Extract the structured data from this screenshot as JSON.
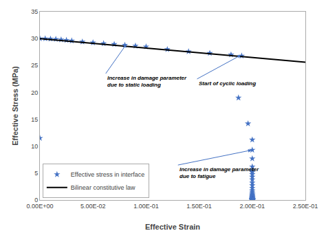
{
  "chart_data": {
    "type": "scatter",
    "xlabel": "Effective Strain",
    "ylabel": "Effective Stress (MPa)",
    "xlim": [
      0,
      0.25
    ],
    "ylim": [
      0,
      35
    ],
    "xticks": [
      {
        "value": 0.0,
        "label": "0.00E+00"
      },
      {
        "value": 0.05,
        "label": "5.00E-02"
      },
      {
        "value": 0.1,
        "label": "1.00E-01"
      },
      {
        "value": 0.15,
        "label": "1.50E-01"
      },
      {
        "value": 0.2,
        "label": "2.00E-01"
      },
      {
        "value": 0.25,
        "label": "2.50E-01"
      }
    ],
    "yticks": [
      0,
      5,
      10,
      15,
      20,
      25,
      30,
      35
    ],
    "grid": false,
    "legend": "lower left",
    "series": [
      {
        "name": "Effective stress in interface",
        "type": "scatter",
        "marker": "star",
        "color": "#4472C4",
        "x": [
          0.0,
          0.005,
          0.01,
          0.015,
          0.02,
          0.025,
          0.03,
          0.04,
          0.05,
          0.06,
          0.07,
          0.08,
          0.09,
          0.1,
          0.12,
          0.14,
          0.16,
          0.18,
          0.19,
          0.0,
          0.187,
          0.196,
          0.2,
          0.2,
          0.2,
          0.2,
          0.2,
          0.2,
          0.2,
          0.2,
          0.2,
          0.2,
          0.2,
          0.2,
          0.2,
          0.2,
          0.2,
          0.2,
          0.2,
          0.2,
          0.2,
          0.2,
          0.2,
          0.2,
          0.2,
          0.2,
          0.2,
          0.2,
          0.2,
          0.2,
          0.2,
          0.2,
          0.2,
          0.2,
          0.2,
          0.2,
          0.2,
          0.2,
          0.2,
          0.2,
          0.2,
          0.2,
          0.2,
          0.2,
          0.2,
          0.2,
          0.2,
          0.2,
          0.2,
          0.2,
          0.2,
          0.2,
          0.2,
          0.2,
          0.2,
          0.2,
          0.2,
          0.2,
          0.2,
          0.2,
          0.2,
          0.2,
          0.2,
          0.2,
          0.2,
          0.2,
          0.2,
          0.2,
          0.2,
          0.2,
          0.2,
          0.2,
          0.2,
          0.2
        ],
        "values": [
          30.0,
          30.0,
          29.95,
          29.9,
          29.8,
          29.7,
          29.6,
          29.4,
          29.25,
          29.1,
          28.95,
          28.8,
          28.65,
          28.5,
          28.0,
          27.6,
          27.3,
          27.0,
          26.8,
          11.5,
          19.0,
          14.2,
          11.2,
          9.3,
          7.7,
          6.2,
          5.5,
          5.2,
          4.8,
          4.3,
          3.8,
          3.2,
          2.7,
          2.2,
          1.8,
          1.5,
          1.2,
          1.0,
          0.85,
          0.7,
          0.58,
          0.48,
          0.4,
          0.33,
          0.27,
          0.22,
          0.18,
          0.15,
          0.12,
          0.1,
          0.085,
          0.07,
          0.058,
          0.048,
          0.04,
          0.033,
          0.027,
          0.022,
          0.018,
          0.015,
          0.012,
          0.01,
          0.0085,
          0.007,
          0.0058,
          0.0048,
          0.004,
          0.0033,
          0.0027,
          0.0022,
          0.0018,
          0.0015,
          0.0012,
          0.001,
          0.00085,
          0.0007,
          0.00058,
          0.00048,
          0.0004,
          0.00033,
          0.00027,
          0.00022,
          0.00018,
          0.00015,
          0.00012,
          0.0001,
          8.5e-05,
          7e-05,
          5.8e-05,
          4.8e-05,
          4e-05,
          3.3e-05,
          2.7e-05,
          2.2e-05
        ]
      },
      {
        "name": "Bilinear constitutive law",
        "type": "line",
        "line_style": "solid",
        "color": "#000000",
        "x": [
          0.0,
          0.25
        ],
        "values": [
          30.0,
          25.6
        ]
      }
    ],
    "annotations": [
      {
        "text": "Increase in damage parameter\ndue to static loading",
        "x": 0.082,
        "y": 29.1,
        "text_x": 0.062,
        "text_y": 23.5
      },
      {
        "text": "Start of cyclic loading",
        "x": 0.19,
        "y": 27.0,
        "text_x": 0.148,
        "text_y": 22.5
      },
      {
        "text": "Increase in damage parameter\ndue to fatigue",
        "x": 0.2,
        "y": 9.3,
        "text_x": 0.13,
        "text_y": 6.5
      }
    ]
  }
}
